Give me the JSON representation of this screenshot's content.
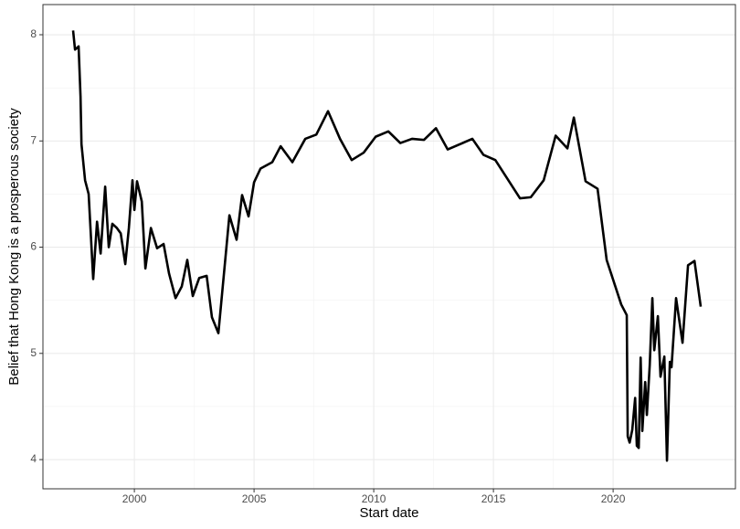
{
  "chart_data": {
    "type": "line",
    "xlabel": "Start date",
    "ylabel": "Belief that Hong Kong is a prosperous society",
    "x": [
      1997.44,
      1997.52,
      1997.67,
      1997.75,
      1997.79,
      1997.94,
      1998.09,
      1998.28,
      1998.44,
      1998.59,
      1998.78,
      1998.93,
      1999.08,
      1999.27,
      1999.43,
      1999.62,
      1999.77,
      1999.92,
      2000.0,
      2000.11,
      2000.31,
      2000.46,
      2000.69,
      2000.95,
      2001.22,
      2001.45,
      2001.72,
      2001.98,
      2002.21,
      2002.44,
      2002.71,
      2003.02,
      2003.24,
      2003.51,
      2003.97,
      2004.27,
      2004.5,
      2004.77,
      2005.0,
      2005.27,
      2005.76,
      2006.11,
      2006.6,
      2007.14,
      2007.6,
      2008.09,
      2008.59,
      2009.08,
      2009.58,
      2010.08,
      2010.61,
      2011.11,
      2011.6,
      2012.1,
      2012.6,
      2013.09,
      2014.12,
      2014.58,
      2015.08,
      2016.11,
      2016.56,
      2017.1,
      2017.6,
      2018.09,
      2018.36,
      2018.85,
      2019.35,
      2019.73,
      2020.34,
      2020.57,
      2020.61,
      2020.69,
      2020.8,
      2020.92,
      2020.99,
      2021.07,
      2021.15,
      2021.22,
      2021.34,
      2021.41,
      2021.53,
      2021.64,
      2021.72,
      2021.87,
      2021.98,
      2022.14,
      2022.25,
      2022.37,
      2022.44,
      2022.63,
      2022.9,
      2023.13,
      2023.4,
      2023.66
    ],
    "series": [
      {
        "color": "#000000",
        "values": [
          8.04,
          7.86,
          7.89,
          7.42,
          6.97,
          6.63,
          6.5,
          5.7,
          6.24,
          5.94,
          6.57,
          6.0,
          6.22,
          6.18,
          6.13,
          5.84,
          6.18,
          6.63,
          6.35,
          6.62,
          6.43,
          5.8,
          6.18,
          5.99,
          6.03,
          5.75,
          5.52,
          5.63,
          5.88,
          5.54,
          5.71,
          5.73,
          5.34,
          5.19,
          6.3,
          6.07,
          6.49,
          6.29,
          6.61,
          6.74,
          6.8,
          6.95,
          6.8,
          7.02,
          7.06,
          7.28,
          7.02,
          6.82,
          6.89,
          7.04,
          7.09,
          6.98,
          7.02,
          7.01,
          7.12,
          6.92,
          7.02,
          6.87,
          6.82,
          6.46,
          6.47,
          6.63,
          7.05,
          6.93,
          7.22,
          6.62,
          6.55,
          5.88,
          5.46,
          5.36,
          4.22,
          4.16,
          4.28,
          4.58,
          4.13,
          4.11,
          4.96,
          4.27,
          4.73,
          4.42,
          4.89,
          5.52,
          5.03,
          5.35,
          4.78,
          4.97,
          3.99,
          4.92,
          4.87,
          5.52,
          5.1,
          5.83,
          5.87,
          5.44
        ]
      }
    ],
    "xlim": [
      1996.18,
      2025.11
    ],
    "xticks": [
      2000,
      2005,
      2010,
      2015,
      2020
    ],
    "ylim": [
      3.725,
      8.284
    ],
    "yticks": [
      4,
      5,
      6,
      7,
      8
    ],
    "grid": true
  }
}
